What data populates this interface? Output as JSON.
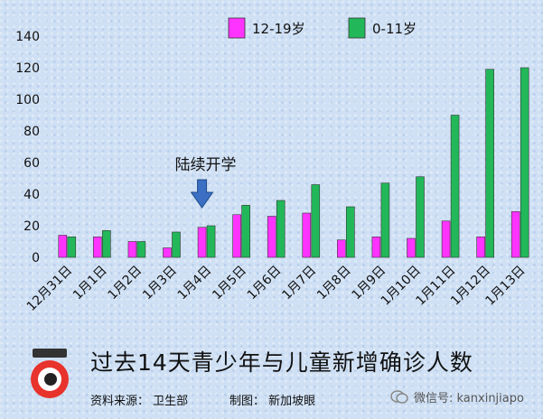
{
  "chart_data": {
    "type": "bar",
    "title": "过去14天青少年与儿童新增确诊人数",
    "categories": [
      "12月31日",
      "1月1日",
      "1月2日",
      "1月3日",
      "1月4日",
      "1月5日",
      "1月6日",
      "1月7日",
      "1月8日",
      "1月9日",
      "1月10日",
      "1月11日",
      "1月12日",
      "1月13日"
    ],
    "series": [
      {
        "name": "12-19岁",
        "color": "#ff33ff",
        "values": [
          14,
          13,
          10,
          6,
          19,
          27,
          26,
          28,
          11,
          13,
          12,
          23,
          13,
          29
        ]
      },
      {
        "name": "0-11岁",
        "color": "#22b85a",
        "values": [
          13,
          17,
          10,
          16,
          20,
          33,
          36,
          46,
          32,
          47,
          51,
          90,
          119,
          120
        ]
      }
    ],
    "ylim": [
      0,
      140
    ],
    "yticks": [
      0,
      20,
      40,
      60,
      80,
      100,
      120,
      140
    ],
    "legend_position": "top",
    "grid": false,
    "annotation": {
      "text": "陆续开学",
      "category": "1月4日",
      "arrow": "down-arrow-icon"
    }
  },
  "footer": {
    "source": "资料来源： 卫生部",
    "credit": "制图： 新加坡眼",
    "wechat": "微信号: kanxinjiapo"
  },
  "logo": {
    "text": "新加坡眼"
  }
}
